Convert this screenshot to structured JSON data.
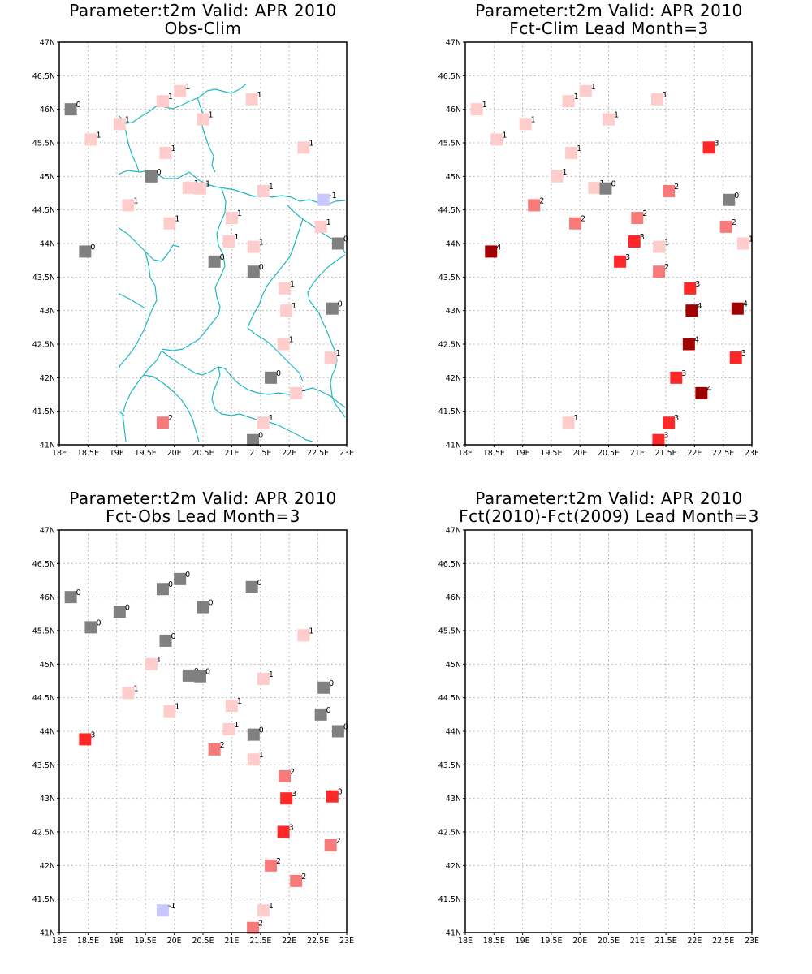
{
  "colors": {
    "-1": "#c8c8ff",
    "0": "#808080",
    "1": "#ffcccc",
    "2": "#f77a7a",
    "3": "#ff2828",
    "4": "#a00000",
    "border": "#1fb8bf"
  },
  "x_ticks": [
    "18E",
    "18.5E",
    "19E",
    "19.5E",
    "20E",
    "20.5E",
    "21E",
    "21.5E",
    "22E",
    "22.5E",
    "23E"
  ],
  "y_ticks": [
    "41N",
    "41.5N",
    "42N",
    "42.5N",
    "43N",
    "43.5N",
    "44N",
    "44.5N",
    "45N",
    "45.5N",
    "46N",
    "46.5N",
    "47N"
  ],
  "maps": [
    {
      "title": "Parameter:t2m Valid: APR 2010",
      "subtitle": "Obs-Clim",
      "points": [
        {
          "lon": 18.2,
          "lat": 46.0,
          "v": 0
        },
        {
          "lon": 20.1,
          "lat": 46.27,
          "v": 1
        },
        {
          "lon": 19.8,
          "lat": 46.12,
          "v": 1
        },
        {
          "lon": 21.35,
          "lat": 46.15,
          "v": 1
        },
        {
          "lon": 19.05,
          "lat": 45.78,
          "v": 1
        },
        {
          "lon": 20.5,
          "lat": 45.85,
          "v": 1
        },
        {
          "lon": 18.55,
          "lat": 45.55,
          "v": 1
        },
        {
          "lon": 19.85,
          "lat": 45.35,
          "v": 1
        },
        {
          "lon": 22.25,
          "lat": 45.43,
          "v": 1
        },
        {
          "lon": 19.6,
          "lat": 45.0,
          "v": 0
        },
        {
          "lon": 20.25,
          "lat": 44.83,
          "v": 1
        },
        {
          "lon": 20.45,
          "lat": 44.82,
          "v": 1
        },
        {
          "lon": 21.55,
          "lat": 44.78,
          "v": 1
        },
        {
          "lon": 22.6,
          "lat": 44.65,
          "v": -1
        },
        {
          "lon": 19.2,
          "lat": 44.57,
          "v": 1
        },
        {
          "lon": 19.92,
          "lat": 44.3,
          "v": 1
        },
        {
          "lon": 21.0,
          "lat": 44.38,
          "v": 1
        },
        {
          "lon": 22.55,
          "lat": 44.25,
          "v": 1
        },
        {
          "lon": 20.95,
          "lat": 44.03,
          "v": 1
        },
        {
          "lon": 21.38,
          "lat": 43.95,
          "v": 1
        },
        {
          "lon": 18.45,
          "lat": 43.88,
          "v": 0
        },
        {
          "lon": 22.85,
          "lat": 44.0,
          "v": 0
        },
        {
          "lon": 20.7,
          "lat": 43.73,
          "v": 0
        },
        {
          "lon": 21.38,
          "lat": 43.58,
          "v": 0
        },
        {
          "lon": 21.92,
          "lat": 43.33,
          "v": 1
        },
        {
          "lon": 21.95,
          "lat": 43.0,
          "v": 1
        },
        {
          "lon": 22.75,
          "lat": 43.03,
          "v": 0
        },
        {
          "lon": 21.9,
          "lat": 42.5,
          "v": 1
        },
        {
          "lon": 22.72,
          "lat": 42.3,
          "v": 1
        },
        {
          "lon": 21.68,
          "lat": 42.0,
          "v": 0
        },
        {
          "lon": 22.12,
          "lat": 41.77,
          "v": 1
        },
        {
          "lon": 19.8,
          "lat": 41.33,
          "v": 2
        },
        {
          "lon": 21.55,
          "lat": 41.33,
          "v": 1
        },
        {
          "lon": 21.37,
          "lat": 41.07,
          "v": 0
        }
      ]
    },
    {
      "title": "Parameter:t2m Valid: APR 2010",
      "subtitle": "Fct-Clim Lead Month=3",
      "points": [
        {
          "lon": 18.2,
          "lat": 46.0,
          "v": 1
        },
        {
          "lon": 20.1,
          "lat": 46.27,
          "v": 1
        },
        {
          "lon": 19.8,
          "lat": 46.12,
          "v": 1
        },
        {
          "lon": 21.35,
          "lat": 46.15,
          "v": 1
        },
        {
          "lon": 19.05,
          "lat": 45.78,
          "v": 1
        },
        {
          "lon": 20.5,
          "lat": 45.85,
          "v": 1
        },
        {
          "lon": 18.55,
          "lat": 45.55,
          "v": 1
        },
        {
          "lon": 19.85,
          "lat": 45.35,
          "v": 1
        },
        {
          "lon": 22.25,
          "lat": 45.43,
          "v": 3
        },
        {
          "lon": 19.6,
          "lat": 45.0,
          "v": 1
        },
        {
          "lon": 20.25,
          "lat": 44.83,
          "v": 1
        },
        {
          "lon": 20.45,
          "lat": 44.82,
          "v": 0
        },
        {
          "lon": 21.55,
          "lat": 44.78,
          "v": 2
        },
        {
          "lon": 22.6,
          "lat": 44.65,
          "v": 0
        },
        {
          "lon": 19.2,
          "lat": 44.57,
          "v": 2
        },
        {
          "lon": 19.92,
          "lat": 44.3,
          "v": 2
        },
        {
          "lon": 21.0,
          "lat": 44.38,
          "v": 2
        },
        {
          "lon": 22.55,
          "lat": 44.25,
          "v": 2
        },
        {
          "lon": 20.95,
          "lat": 44.03,
          "v": 3
        },
        {
          "lon": 21.38,
          "lat": 43.95,
          "v": 1
        },
        {
          "lon": 18.45,
          "lat": 43.88,
          "v": 4
        },
        {
          "lon": 22.85,
          "lat": 44.0,
          "v": 1
        },
        {
          "lon": 20.7,
          "lat": 43.73,
          "v": 3
        },
        {
          "lon": 21.38,
          "lat": 43.58,
          "v": 2
        },
        {
          "lon": 21.92,
          "lat": 43.33,
          "v": 3
        },
        {
          "lon": 21.95,
          "lat": 43.0,
          "v": 4
        },
        {
          "lon": 22.75,
          "lat": 43.03,
          "v": 4
        },
        {
          "lon": 21.9,
          "lat": 42.5,
          "v": 4
        },
        {
          "lon": 22.72,
          "lat": 42.3,
          "v": 3
        },
        {
          "lon": 21.68,
          "lat": 42.0,
          "v": 3
        },
        {
          "lon": 22.12,
          "lat": 41.77,
          "v": 4
        },
        {
          "lon": 19.8,
          "lat": 41.33,
          "v": 1
        },
        {
          "lon": 21.55,
          "lat": 41.33,
          "v": 3
        },
        {
          "lon": 21.37,
          "lat": 41.07,
          "v": 3
        }
      ]
    },
    {
      "title": "Parameter:t2m Valid: APR 2010",
      "subtitle": "Fct-Obs Lead Month=3",
      "points": [
        {
          "lon": 18.2,
          "lat": 46.0,
          "v": 0
        },
        {
          "lon": 20.1,
          "lat": 46.27,
          "v": 0
        },
        {
          "lon": 19.8,
          "lat": 46.12,
          "v": 0
        },
        {
          "lon": 21.35,
          "lat": 46.15,
          "v": 0
        },
        {
          "lon": 19.05,
          "lat": 45.78,
          "v": 0
        },
        {
          "lon": 20.5,
          "lat": 45.85,
          "v": 0
        },
        {
          "lon": 18.55,
          "lat": 45.55,
          "v": 0
        },
        {
          "lon": 19.85,
          "lat": 45.35,
          "v": 0
        },
        {
          "lon": 22.25,
          "lat": 45.43,
          "v": 1
        },
        {
          "lon": 19.6,
          "lat": 45.0,
          "v": 1
        },
        {
          "lon": 20.25,
          "lat": 44.83,
          "v": 0
        },
        {
          "lon": 20.45,
          "lat": 44.82,
          "v": 0
        },
        {
          "lon": 21.55,
          "lat": 44.78,
          "v": 1
        },
        {
          "lon": 22.6,
          "lat": 44.65,
          "v": 0
        },
        {
          "lon": 19.2,
          "lat": 44.57,
          "v": 1
        },
        {
          "lon": 19.92,
          "lat": 44.3,
          "v": 1
        },
        {
          "lon": 21.0,
          "lat": 44.38,
          "v": 1
        },
        {
          "lon": 22.55,
          "lat": 44.25,
          "v": 0
        },
        {
          "lon": 20.95,
          "lat": 44.03,
          "v": 1
        },
        {
          "lon": 21.38,
          "lat": 43.95,
          "v": 0
        },
        {
          "lon": 18.45,
          "lat": 43.88,
          "v": 3
        },
        {
          "lon": 22.85,
          "lat": 44.0,
          "v": 0
        },
        {
          "lon": 20.7,
          "lat": 43.73,
          "v": 2
        },
        {
          "lon": 21.38,
          "lat": 43.58,
          "v": 1
        },
        {
          "lon": 21.92,
          "lat": 43.33,
          "v": 2
        },
        {
          "lon": 21.95,
          "lat": 43.0,
          "v": 3
        },
        {
          "lon": 22.75,
          "lat": 43.03,
          "v": 3
        },
        {
          "lon": 21.9,
          "lat": 42.5,
          "v": 3
        },
        {
          "lon": 22.72,
          "lat": 42.3,
          "v": 2
        },
        {
          "lon": 21.68,
          "lat": 42.0,
          "v": 2
        },
        {
          "lon": 22.12,
          "lat": 41.77,
          "v": 2
        },
        {
          "lon": 19.8,
          "lat": 41.33,
          "v": -1
        },
        {
          "lon": 21.55,
          "lat": 41.33,
          "v": 1
        },
        {
          "lon": 21.37,
          "lat": 41.07,
          "v": 2
        }
      ]
    },
    {
      "title": "Parameter:t2m Valid: APR 2010",
      "subtitle": "Fct(2010)-Fct(2009) Lead Month=3",
      "points": []
    }
  ]
}
